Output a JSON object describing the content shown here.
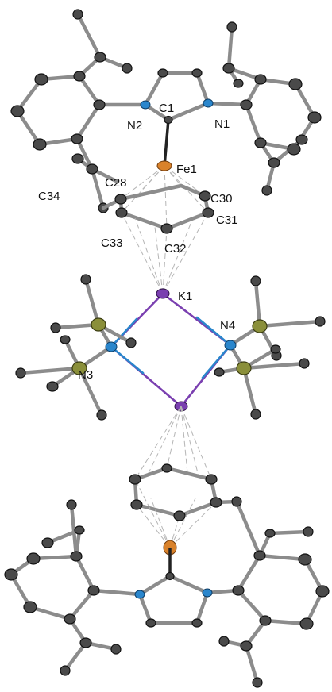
{
  "labels": {
    "c1": "C1",
    "n1": "N1",
    "n2": "N2",
    "fe1": "Fe1",
    "c28": "C28",
    "c30": "C30",
    "c31": "C31",
    "c32": "C32",
    "c33": "C33",
    "c34": "C34",
    "k1": "K1",
    "n3": "N3",
    "n4": "N4"
  },
  "colors": {
    "carbon": "#4a4a4a",
    "nitrogen": "#2a86cc",
    "iron": "#d9822b",
    "potassium": "#7a3fb0",
    "silicon": "#8a8f3a",
    "bond": "#8c8c8c"
  }
}
